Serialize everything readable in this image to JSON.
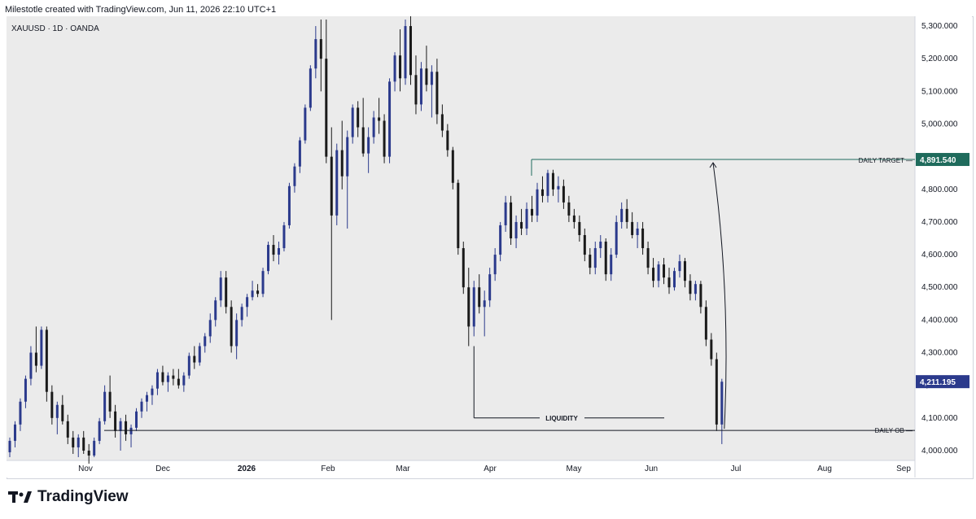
{
  "header": {
    "text": "Milestotle created with TradingView.com, Jun 11, 2026 22:10 UTC+1"
  },
  "brand": {
    "name": "TradingView",
    "icon": "tradingview-logo-icon"
  },
  "colors": {
    "background": "#ebebeb",
    "bull": "#2b3a8c",
    "bear": "#1a1a1a",
    "target_line": "#1f6b5c",
    "target_label_bg": "#1f6b5c",
    "price_label_bg": "#2b3a8c"
  },
  "chart_data": {
    "type": "candlestick",
    "symbol_label": "XAUUSD · 1D · OANDA",
    "x_ticks": [
      "Nov",
      "Dec",
      "2026",
      "Feb",
      "Mar",
      "Apr",
      "May",
      "Jun",
      "Jul",
      "Aug",
      "Sep"
    ],
    "y_ticks": [
      "5,300.000",
      "5,200.000",
      "5,100.000",
      "5,000.000",
      "4,900.000",
      "4,800.000",
      "4,700.000",
      "4,600.000",
      "4,500.000",
      "4,400.000",
      "4,300.000",
      "4,200.000",
      "4,100.000",
      "4,000.000"
    ],
    "ylim": [
      3970,
      5330
    ],
    "current_price": {
      "value": 4211.195,
      "label": "4,211.195"
    },
    "levels": [
      {
        "name": "DAILY TARGET",
        "value": 4891.54,
        "label": "4,891.540"
      },
      {
        "name": "DAILY OB",
        "value": 4062
      },
      {
        "name": "LIQUIDITY",
        "value": 4100
      }
    ],
    "grid": false,
    "candles": [
      [
        3995,
        4040,
        3980,
        4030
      ],
      [
        4030,
        4090,
        4010,
        4080
      ],
      [
        4080,
        4160,
        4060,
        4150
      ],
      [
        4150,
        4230,
        4130,
        4220
      ],
      [
        4220,
        4320,
        4200,
        4300
      ],
      [
        4300,
        4380,
        4240,
        4260
      ],
      [
        4260,
        4380,
        4250,
        4370
      ],
      [
        4370,
        4380,
        4150,
        4180
      ],
      [
        4180,
        4200,
        4080,
        4100
      ],
      [
        4100,
        4150,
        4050,
        4140
      ],
      [
        4140,
        4170,
        4080,
        4090
      ],
      [
        4090,
        4110,
        4020,
        4040
      ],
      [
        4040,
        4060,
        3990,
        4010
      ],
      [
        4010,
        4050,
        3980,
        4040
      ],
      [
        4040,
        4060,
        3990,
        4000
      ],
      [
        4000,
        4020,
        3960,
        3985
      ],
      [
        3985,
        4040,
        3980,
        4030
      ],
      [
        4030,
        4100,
        4020,
        4090
      ],
      [
        4090,
        4200,
        4080,
        4180
      ],
      [
        4180,
        4230,
        4100,
        4120
      ],
      [
        4120,
        4140,
        4040,
        4060
      ],
      [
        4060,
        4100,
        4000,
        4090
      ],
      [
        4090,
        4110,
        4030,
        4050
      ],
      [
        4050,
        4080,
        4010,
        4070
      ],
      [
        4070,
        4130,
        4060,
        4120
      ],
      [
        4120,
        4160,
        4100,
        4150
      ],
      [
        4150,
        4180,
        4120,
        4170
      ],
      [
        4170,
        4200,
        4140,
        4190
      ],
      [
        4190,
        4250,
        4170,
        4240
      ],
      [
        4240,
        4260,
        4200,
        4210
      ],
      [
        4210,
        4240,
        4180,
        4230
      ],
      [
        4230,
        4250,
        4200,
        4220
      ],
      [
        4220,
        4250,
        4190,
        4200
      ],
      [
        4200,
        4240,
        4180,
        4230
      ],
      [
        4230,
        4300,
        4220,
        4290
      ],
      [
        4290,
        4320,
        4250,
        4270
      ],
      [
        4270,
        4330,
        4260,
        4320
      ],
      [
        4320,
        4360,
        4300,
        4350
      ],
      [
        4350,
        4420,
        4330,
        4400
      ],
      [
        4400,
        4470,
        4380,
        4460
      ],
      [
        4460,
        4550,
        4440,
        4530
      ],
      [
        4530,
        4550,
        4420,
        4440
      ],
      [
        4440,
        4460,
        4300,
        4320
      ],
      [
        4320,
        4420,
        4280,
        4400
      ],
      [
        4400,
        4450,
        4380,
        4440
      ],
      [
        4440,
        4480,
        4410,
        4470
      ],
      [
        4470,
        4520,
        4460,
        4490
      ],
      [
        4490,
        4510,
        4470,
        4480
      ],
      [
        4480,
        4560,
        4470,
        4550
      ],
      [
        4550,
        4640,
        4540,
        4630
      ],
      [
        4630,
        4660,
        4580,
        4600
      ],
      [
        4600,
        4640,
        4570,
        4620
      ],
      [
        4620,
        4700,
        4610,
        4690
      ],
      [
        4690,
        4820,
        4680,
        4810
      ],
      [
        4810,
        4880,
        4790,
        4870
      ],
      [
        4870,
        4960,
        4850,
        4950
      ],
      [
        4950,
        5060,
        4940,
        5050
      ],
      [
        5050,
        5180,
        5040,
        5170
      ],
      [
        5170,
        5300,
        5140,
        5260
      ],
      [
        5260,
        5320,
        5100,
        5200
      ],
      [
        5200,
        5320,
        4880,
        4900
      ],
      [
        4900,
        4990,
        4400,
        4720
      ],
      [
        4720,
        4940,
        4690,
        4920
      ],
      [
        4920,
        5010,
        4800,
        4840
      ],
      [
        4840,
        4980,
        4680,
        4960
      ],
      [
        4960,
        5060,
        4940,
        5050
      ],
      [
        5050,
        5070,
        4960,
        4990
      ],
      [
        4990,
        5080,
        4900,
        4910
      ],
      [
        4910,
        4990,
        4850,
        4960
      ],
      [
        4960,
        5040,
        4940,
        5020
      ],
      [
        5020,
        5080,
        4970,
        5010
      ],
      [
        5010,
        5030,
        4880,
        4900
      ],
      [
        4900,
        5140,
        4880,
        5130
      ],
      [
        5130,
        5220,
        5100,
        5210
      ],
      [
        5210,
        5290,
        5100,
        5140
      ],
      [
        5140,
        5320,
        5120,
        5300
      ],
      [
        5300,
        5330,
        5120,
        5150
      ],
      [
        5150,
        5210,
        5030,
        5060
      ],
      [
        5060,
        5190,
        5040,
        5170
      ],
      [
        5170,
        5240,
        5100,
        5120
      ],
      [
        5120,
        5180,
        5020,
        5160
      ],
      [
        5160,
        5200,
        5000,
        5030
      ],
      [
        5030,
        5060,
        4960,
        4980
      ],
      [
        4980,
        5000,
        4900,
        4920
      ],
      [
        4920,
        4930,
        4800,
        4820
      ],
      [
        4820,
        4830,
        4600,
        4620
      ],
      [
        4620,
        4640,
        4480,
        4500
      ],
      [
        4500,
        4560,
        4320,
        4380
      ],
      [
        4380,
        4520,
        4350,
        4500
      ],
      [
        4500,
        4540,
        4420,
        4440
      ],
      [
        4440,
        4490,
        4350,
        4460
      ],
      [
        4460,
        4560,
        4440,
        4540
      ],
      [
        4540,
        4620,
        4520,
        4600
      ],
      [
        4600,
        4700,
        4580,
        4690
      ],
      [
        4690,
        4780,
        4670,
        4760
      ],
      [
        4760,
        4780,
        4630,
        4650
      ],
      [
        4650,
        4720,
        4620,
        4700
      ],
      [
        4700,
        4740,
        4660,
        4680
      ],
      [
        4680,
        4760,
        4660,
        4740
      ],
      [
        4740,
        4780,
        4700,
        4720
      ],
      [
        4720,
        4820,
        4700,
        4800
      ],
      [
        4800,
        4840,
        4760,
        4780
      ],
      [
        4780,
        4860,
        4760,
        4850
      ],
      [
        4850,
        4860,
        4780,
        4800
      ],
      [
        4800,
        4840,
        4760,
        4810
      ],
      [
        4810,
        4830,
        4740,
        4760
      ],
      [
        4760,
        4780,
        4700,
        4720
      ],
      [
        4720,
        4740,
        4680,
        4700
      ],
      [
        4700,
        4720,
        4640,
        4660
      ],
      [
        4660,
        4680,
        4580,
        4600
      ],
      [
        4600,
        4620,
        4540,
        4560
      ],
      [
        4560,
        4640,
        4540,
        4620
      ],
      [
        4620,
        4660,
        4590,
        4640
      ],
      [
        4640,
        4650,
        4520,
        4540
      ],
      [
        4540,
        4620,
        4520,
        4600
      ],
      [
        4600,
        4720,
        4590,
        4700
      ],
      [
        4700,
        4760,
        4680,
        4740
      ],
      [
        4740,
        4770,
        4680,
        4700
      ],
      [
        4700,
        4730,
        4650,
        4660
      ],
      [
        4660,
        4700,
        4620,
        4680
      ],
      [
        4680,
        4700,
        4600,
        4620
      ],
      [
        4620,
        4640,
        4540,
        4560
      ],
      [
        4560,
        4590,
        4500,
        4520
      ],
      [
        4520,
        4580,
        4500,
        4570
      ],
      [
        4570,
        4590,
        4510,
        4530
      ],
      [
        4530,
        4560,
        4480,
        4500
      ],
      [
        4500,
        4560,
        4490,
        4550
      ],
      [
        4550,
        4600,
        4530,
        4580
      ],
      [
        4580,
        4590,
        4500,
        4520
      ],
      [
        4520,
        4540,
        4460,
        4480
      ],
      [
        4480,
        4520,
        4460,
        4510
      ],
      [
        4510,
        4520,
        4420,
        4440
      ],
      [
        4440,
        4460,
        4320,
        4340
      ],
      [
        4340,
        4360,
        4260,
        4280
      ],
      [
        4280,
        4300,
        4060,
        4080
      ],
      [
        4080,
        4220,
        4020,
        4211
      ]
    ]
  }
}
